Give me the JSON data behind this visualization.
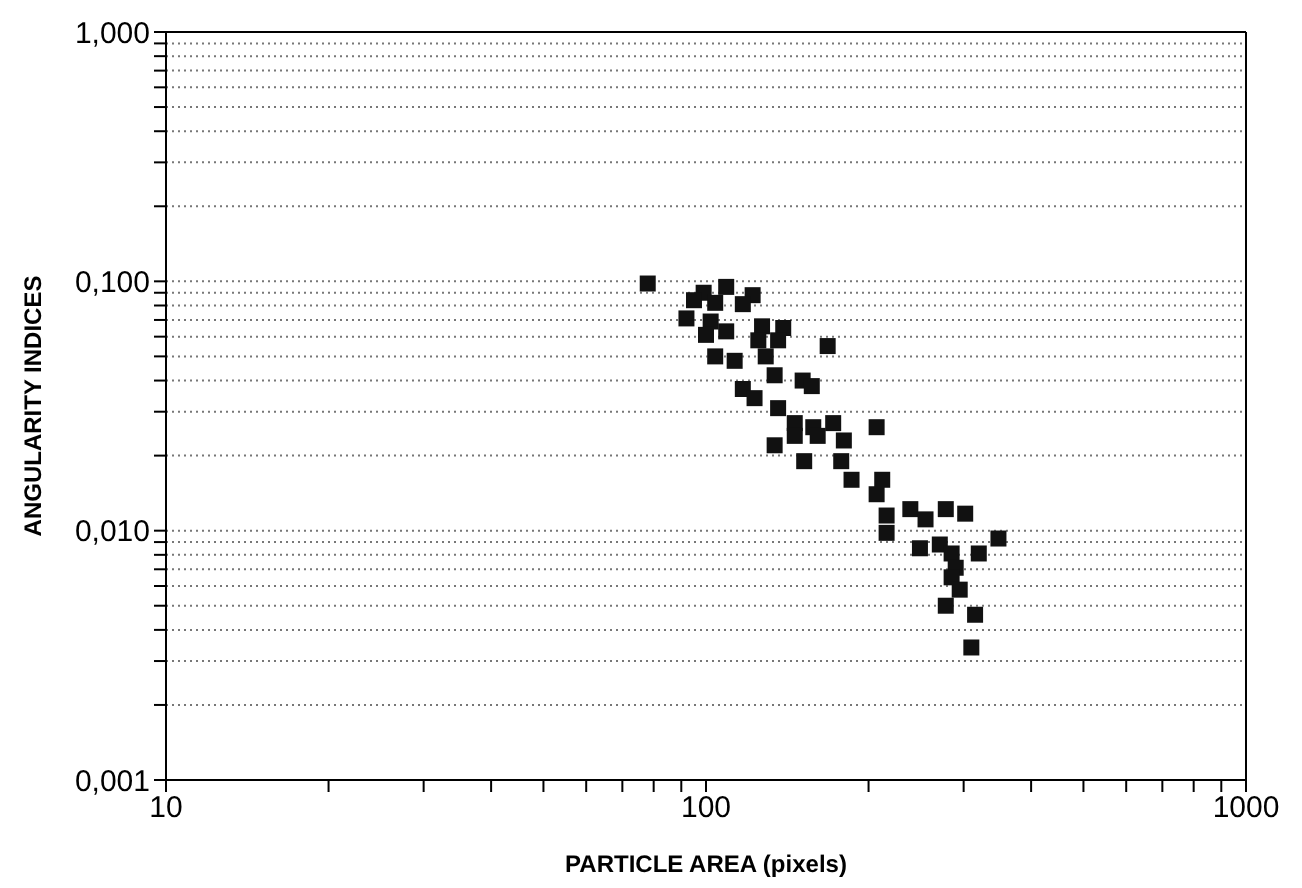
{
  "chart_data": {
    "type": "scatter",
    "xlabel": "PARTICLE AREA (pixels)",
    "ylabel": "ANGULARITY INDICES",
    "log": "xy",
    "grid": "y",
    "marker": "square",
    "legend": false,
    "xlim": [
      10,
      1000
    ],
    "xticks": [
      10,
      {
        "value": 20,
        "label": null
      },
      {
        "value": 30,
        "label": null
      },
      {
        "value": 40,
        "label": null
      },
      {
        "value": 50,
        "label": null
      },
      {
        "value": 60,
        "label": null
      },
      {
        "value": 70,
        "label": null
      },
      {
        "value": 80,
        "label": null
      },
      {
        "value": 90,
        "label": null
      },
      100,
      {
        "value": 200,
        "label": null
      },
      {
        "value": 300,
        "label": null
      },
      {
        "value": 400,
        "label": null
      },
      {
        "value": 500,
        "label": null
      },
      {
        "value": 600,
        "label": null
      },
      {
        "value": 700,
        "label": null
      },
      {
        "value": 800,
        "label": null
      },
      {
        "value": 900,
        "label": null
      },
      1000
    ],
    "ylim": [
      0.001,
      1
    ],
    "yticks": [
      {
        "value": 0.001,
        "label": "0,001"
      },
      {
        "value": 0.002,
        "label": null
      },
      {
        "value": 0.003,
        "label": null
      },
      {
        "value": 0.004,
        "label": null
      },
      {
        "value": 0.005,
        "label": null
      },
      {
        "value": 0.006,
        "label": null
      },
      {
        "value": 0.007,
        "label": null
      },
      {
        "value": 0.008,
        "label": null
      },
      {
        "value": 0.009,
        "label": null
      },
      {
        "value": 0.01,
        "label": "0,010"
      },
      {
        "value": 0.02,
        "label": null
      },
      {
        "value": 0.03,
        "label": null
      },
      {
        "value": 0.04,
        "label": null
      },
      {
        "value": 0.05,
        "label": null
      },
      {
        "value": 0.06,
        "label": null
      },
      {
        "value": 0.07,
        "label": null
      },
      {
        "value": 0.08,
        "label": null
      },
      {
        "value": 0.09,
        "label": null
      },
      {
        "value": 0.1,
        "label": "0,100"
      },
      {
        "value": 0.2,
        "label": null
      },
      {
        "value": 0.3,
        "label": null
      },
      {
        "value": 0.4,
        "label": null
      },
      {
        "value": 0.5,
        "label": null
      },
      {
        "value": 0.6,
        "label": null
      },
      {
        "value": 0.7,
        "label": null
      },
      {
        "value": 0.8,
        "label": null
      },
      {
        "value": 0.9,
        "label": null
      },
      {
        "value": 1,
        "label": "1,000"
      }
    ],
    "series": [
      {
        "color": "#111111",
        "x": [
          78,
          99,
          109,
          122,
          95,
          104,
          117,
          92,
          102,
          100,
          109,
          127,
          139,
          125,
          136,
          168,
          104,
          113,
          129,
          134,
          151,
          157,
          117,
          123,
          136,
          146,
          158,
          172,
          134,
          152,
          178,
          146,
          161,
          180,
          207,
          186,
          212,
          207,
          216,
          216,
          239,
          255,
          278,
          302,
          249,
          271,
          285,
          290,
          285,
          295,
          278,
          348,
          320,
          315,
          310
        ],
        "values": [
          0.098,
          0.09,
          0.095,
          0.088,
          0.084,
          0.082,
          0.081,
          0.071,
          0.069,
          0.061,
          0.063,
          0.066,
          0.065,
          0.058,
          0.058,
          0.055,
          0.05,
          0.048,
          0.05,
          0.042,
          0.04,
          0.038,
          0.037,
          0.034,
          0.031,
          0.027,
          0.026,
          0.027,
          0.022,
          0.019,
          0.019,
          0.024,
          0.024,
          0.023,
          0.026,
          0.016,
          0.016,
          0.014,
          0.0115,
          0.0098,
          0.0122,
          0.0111,
          0.0122,
          0.0117,
          0.0085,
          0.0088,
          0.0081,
          0.0071,
          0.0065,
          0.0058,
          0.005,
          0.0093,
          0.0081,
          0.0046,
          0.0034
        ]
      }
    ]
  }
}
